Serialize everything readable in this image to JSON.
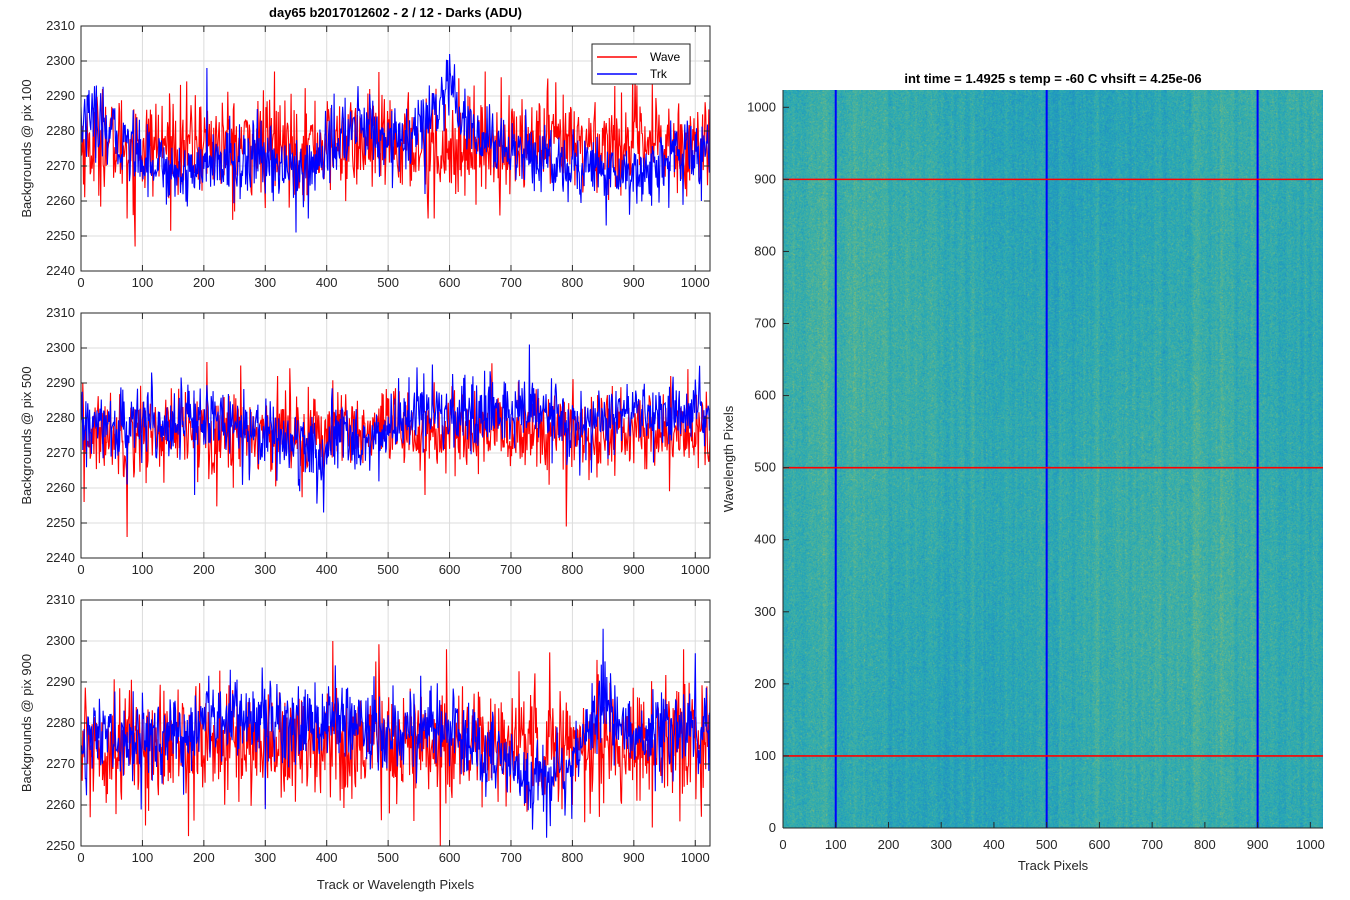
{
  "figure_title": "day65 b2017012602 - 2 / 12 - Darks (ADU)",
  "colors": {
    "wave": "#ff0000",
    "trk": "#0000ff"
  },
  "chart_data": [
    {
      "type": "line",
      "title": "day65 b2017012602 - 2 / 12 - Darks (ADU)",
      "ylabel": "Backgrounds @ pix 100",
      "xlabel": "",
      "xlim": [
        0,
        1024
      ],
      "ylim": [
        2240,
        2310
      ],
      "xticks": [
        0,
        100,
        200,
        300,
        400,
        500,
        600,
        700,
        800,
        900,
        1000
      ],
      "yticks": [
        2240,
        2250,
        2260,
        2270,
        2280,
        2290,
        2300,
        2310
      ],
      "grid": true,
      "legend": {
        "position": "top-right",
        "entries": [
          "Wave",
          "Trk"
        ]
      },
      "series": [
        {
          "name": "Wave",
          "color": "#ff0000",
          "mean": 2276,
          "noise": 7,
          "outliers": [
            [
              35,
              2292
            ],
            [
              75,
              2255
            ],
            [
              88,
              2247
            ],
            [
              195,
              2287
            ],
            [
              250,
              2257
            ],
            [
              300,
              2258
            ],
            [
              315,
              2297
            ],
            [
              470,
              2292
            ],
            [
              565,
              2255
            ],
            [
              575,
              2255
            ],
            [
              610,
              2262
            ],
            [
              640,
              2293
            ],
            [
              760,
              2295
            ],
            [
              880,
              2291
            ],
            [
              905,
              2293
            ]
          ]
        },
        {
          "name": "Trk",
          "color": "#0000ff",
          "mean": 2275,
          "noise": 5,
          "drift": [
            [
              0,
              2283
            ],
            [
              70,
              2277
            ],
            [
              150,
              2268
            ],
            [
              200,
              2270
            ],
            [
              300,
              2272
            ],
            [
              360,
              2268
            ],
            [
              450,
              2282
            ],
            [
              530,
              2276
            ],
            [
              600,
              2290
            ],
            [
              640,
              2278
            ],
            [
              800,
              2270
            ],
            [
              900,
              2268
            ],
            [
              1024,
              2275
            ]
          ],
          "outliers": [
            [
              10,
              2290
            ],
            [
              25,
              2293
            ],
            [
              205,
              2298
            ],
            [
              350,
              2251
            ],
            [
              370,
              2255
            ],
            [
              560,
              2262
            ],
            [
              600,
              2302
            ],
            [
              855,
              2253
            ],
            [
              1010,
              2260
            ]
          ]
        }
      ]
    },
    {
      "type": "line",
      "ylabel": "Backgrounds @ pix 500",
      "xlabel": "",
      "xlim": [
        0,
        1024
      ],
      "ylim": [
        2240,
        2310
      ],
      "xticks": [
        0,
        100,
        200,
        300,
        400,
        500,
        600,
        700,
        800,
        900,
        1000
      ],
      "yticks": [
        2240,
        2250,
        2260,
        2270,
        2280,
        2290,
        2300,
        2310
      ],
      "grid": true,
      "series": [
        {
          "name": "Wave",
          "color": "#ff0000",
          "mean": 2276,
          "noise": 6,
          "outliers": [
            [
              5,
              2256
            ],
            [
              75,
              2246
            ],
            [
              205,
              2296
            ],
            [
              260,
              2295
            ],
            [
              320,
              2292
            ],
            [
              560,
              2258
            ],
            [
              790,
              2249
            ],
            [
              840,
              2263
            ],
            [
              960,
              2292
            ]
          ]
        },
        {
          "name": "Trk",
          "color": "#0000ff",
          "mean": 2278,
          "noise": 5,
          "drift": [
            [
              0,
              2277
            ],
            [
              100,
              2278
            ],
            [
              180,
              2280
            ],
            [
              260,
              2278
            ],
            [
              320,
              2275
            ],
            [
              390,
              2268
            ],
            [
              430,
              2277
            ],
            [
              470,
              2272
            ],
            [
              540,
              2282
            ],
            [
              640,
              2279
            ],
            [
              720,
              2283
            ],
            [
              800,
              2277
            ],
            [
              900,
              2281
            ],
            [
              1024,
              2280
            ]
          ],
          "outliers": [
            [
              75,
              2261
            ],
            [
              115,
              2293
            ],
            [
              185,
              2258
            ],
            [
              395,
              2253
            ],
            [
              730,
              2301
            ],
            [
              1000,
              2291
            ]
          ]
        }
      ]
    },
    {
      "type": "line",
      "ylabel": "Backgrounds @ pix 900",
      "xlabel": "Track or Wavelength Pixels",
      "xlim": [
        0,
        1024
      ],
      "ylim": [
        2250,
        2310
      ],
      "xticks": [
        0,
        100,
        200,
        300,
        400,
        500,
        600,
        700,
        800,
        900,
        1000
      ],
      "yticks": [
        2250,
        2260,
        2270,
        2280,
        2290,
        2300,
        2310
      ],
      "grid": true,
      "series": [
        {
          "name": "Wave",
          "color": "#ff0000",
          "mean": 2275,
          "noise": 7,
          "outliers": [
            [
              15,
              2257
            ],
            [
              105,
              2255
            ],
            [
              300,
              2260
            ],
            [
              410,
              2300
            ],
            [
              480,
              2295
            ],
            [
              585,
              2250
            ],
            [
              595,
              2298
            ],
            [
              800,
              2260
            ],
            [
              975,
              2256
            ]
          ]
        },
        {
          "name": "Trk",
          "color": "#0000ff",
          "mean": 2277,
          "noise": 5,
          "drift": [
            [
              0,
              2276
            ],
            [
              150,
              2276
            ],
            [
              250,
              2283
            ],
            [
              350,
              2280
            ],
            [
              450,
              2280
            ],
            [
              500,
              2278
            ],
            [
              600,
              2279
            ],
            [
              650,
              2273
            ],
            [
              720,
              2267
            ],
            [
              800,
              2270
            ],
            [
              850,
              2286
            ],
            [
              900,
              2276
            ],
            [
              1000,
              2280
            ],
            [
              1024,
              2281
            ]
          ],
          "outliers": [
            [
              300,
              2259
            ],
            [
              735,
              2254
            ],
            [
              850,
              2303
            ],
            [
              1000,
              2297
            ]
          ]
        }
      ]
    },
    {
      "type": "heatmap",
      "title": "int time = 1.4925 s    temp = -60 C    vhsift = 4.25e-06",
      "xlabel": "Track Pixels",
      "ylabel": "Wavelength Pixels",
      "xlim": [
        0,
        1024
      ],
      "ylim": [
        0,
        1024
      ],
      "xticks": [
        0,
        100,
        200,
        300,
        400,
        500,
        600,
        700,
        800,
        900,
        1000
      ],
      "yticks": [
        0,
        100,
        200,
        300,
        400,
        500,
        600,
        700,
        800,
        900,
        1000
      ],
      "colormap": "parula",
      "colormap_range": [
        "#1f8fc4",
        "#27a8b6",
        "#4db39a",
        "#8cbc6e"
      ],
      "vertical_lines": {
        "color": "#0000ff",
        "x": [
          100,
          500,
          900
        ]
      },
      "horizontal_lines": {
        "color": "#ff0000",
        "y": [
          100,
          500,
          900
        ]
      }
    }
  ]
}
